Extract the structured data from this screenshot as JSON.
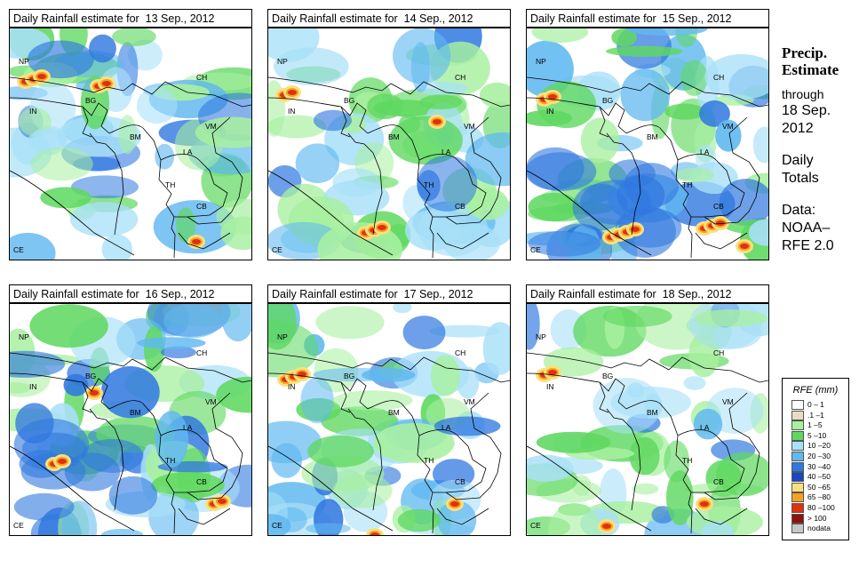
{
  "panels": [
    {
      "title": "Daily Rainfall estimate for  13 Sep., 2012",
      "pattern": 0
    },
    {
      "title": "Daily Rainfall estimate for  14 Sep., 2012",
      "pattern": 1
    },
    {
      "title": "Daily Rainfall estimate for  15 Sep., 2012",
      "pattern": 2
    },
    {
      "title": "Daily Rainfall estimate for  16 Sep., 2012",
      "pattern": 3
    },
    {
      "title": "Daily Rainfall estimate for  17 Sep., 2012",
      "pattern": 4
    },
    {
      "title": "Daily Rainfall estimate for  18 Sep., 2012",
      "pattern": 5
    }
  ],
  "country_labels": [
    "NP",
    "CH",
    "BG",
    "IN",
    "BM",
    "VM",
    "LA",
    "TH",
    "CB",
    "CE"
  ],
  "sidebar": {
    "title_line1": "Precip.",
    "title_line2": "Estimate",
    "through": "through",
    "date_line1": "18 Sep.",
    "date_line2": "2012",
    "daily_line1": "Daily",
    "daily_line2": "Totals",
    "data_line1": "Data:",
    "data_line2": "NOAA–",
    "data_line3": "RFE 2.0"
  },
  "legend": {
    "title": "RFE (mm)",
    "items": [
      {
        "label": "0 – 1",
        "color": "#ffffff"
      },
      {
        "label": ".1 –1",
        "color": "#e8dcc4"
      },
      {
        "label": "1 –5",
        "color": "#a8f0a0"
      },
      {
        "label": "5 –10",
        "color": "#5fd860"
      },
      {
        "label": "10 –20",
        "color": "#a8e0f8"
      },
      {
        "label": "20 –30",
        "color": "#60b8f0"
      },
      {
        "label": "30 –40",
        "color": "#3078e0"
      },
      {
        "label": "40 –50",
        "color": "#1848c0"
      },
      {
        "label": "50 –65",
        "color": "#f8e080"
      },
      {
        "label": "65 –80",
        "color": "#f8a020"
      },
      {
        "label": "80 –100",
        "color": "#e03010"
      },
      {
        "label": "> 100",
        "color": "#901010"
      },
      {
        "label": "nodata",
        "color": "#c8c8c8"
      }
    ]
  }
}
